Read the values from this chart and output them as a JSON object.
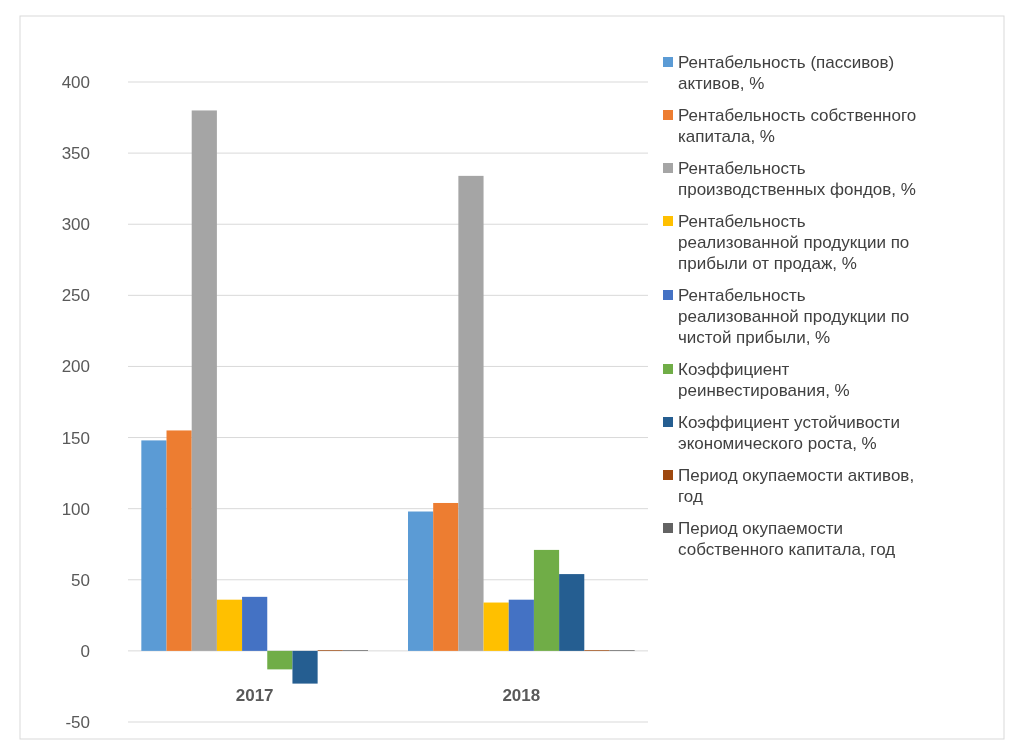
{
  "chart_data": {
    "type": "bar",
    "categories": [
      "2017",
      "2018"
    ],
    "series": [
      {
        "name": "Рентабельность (пассивов) активов, %",
        "color": "#5b9bd5",
        "values": [
          148,
          98
        ]
      },
      {
        "name": "Рентабельность собственного капитала, %",
        "color": "#ed7d31",
        "values": [
          155,
          104
        ]
      },
      {
        "name": "Рентабельность производственных фондов, %",
        "color": "#a5a5a5",
        "values": [
          380,
          334
        ]
      },
      {
        "name": "Рентабельность реализованной продукции по прибыли от продаж, %",
        "color": "#ffc000",
        "values": [
          36,
          34
        ]
      },
      {
        "name": "Рентабельность реализованной продукции по чистой прибыли, %",
        "color": "#4472c4",
        "values": [
          38,
          36
        ]
      },
      {
        "name": "Коэффициент реинвестирования, %",
        "color": "#70ad47",
        "values": [
          -13,
          71
        ]
      },
      {
        "name": "Коэффициент устойчивости экономического роста, %",
        "color": "#255e91",
        "values": [
          -23,
          54
        ]
      },
      {
        "name": "Период окупаемости активов, год",
        "color": "#9e480e",
        "values": [
          0.5,
          0.5
        ]
      },
      {
        "name": "Период окупаемости собственного капитала, год",
        "color": "#636363",
        "values": [
          0.5,
          0.5
        ]
      }
    ],
    "ylim": [
      -50,
      400
    ],
    "yticks": [
      -50,
      0,
      50,
      100,
      150,
      200,
      250,
      300,
      350,
      400
    ],
    "grid": "y",
    "legend": "right"
  }
}
